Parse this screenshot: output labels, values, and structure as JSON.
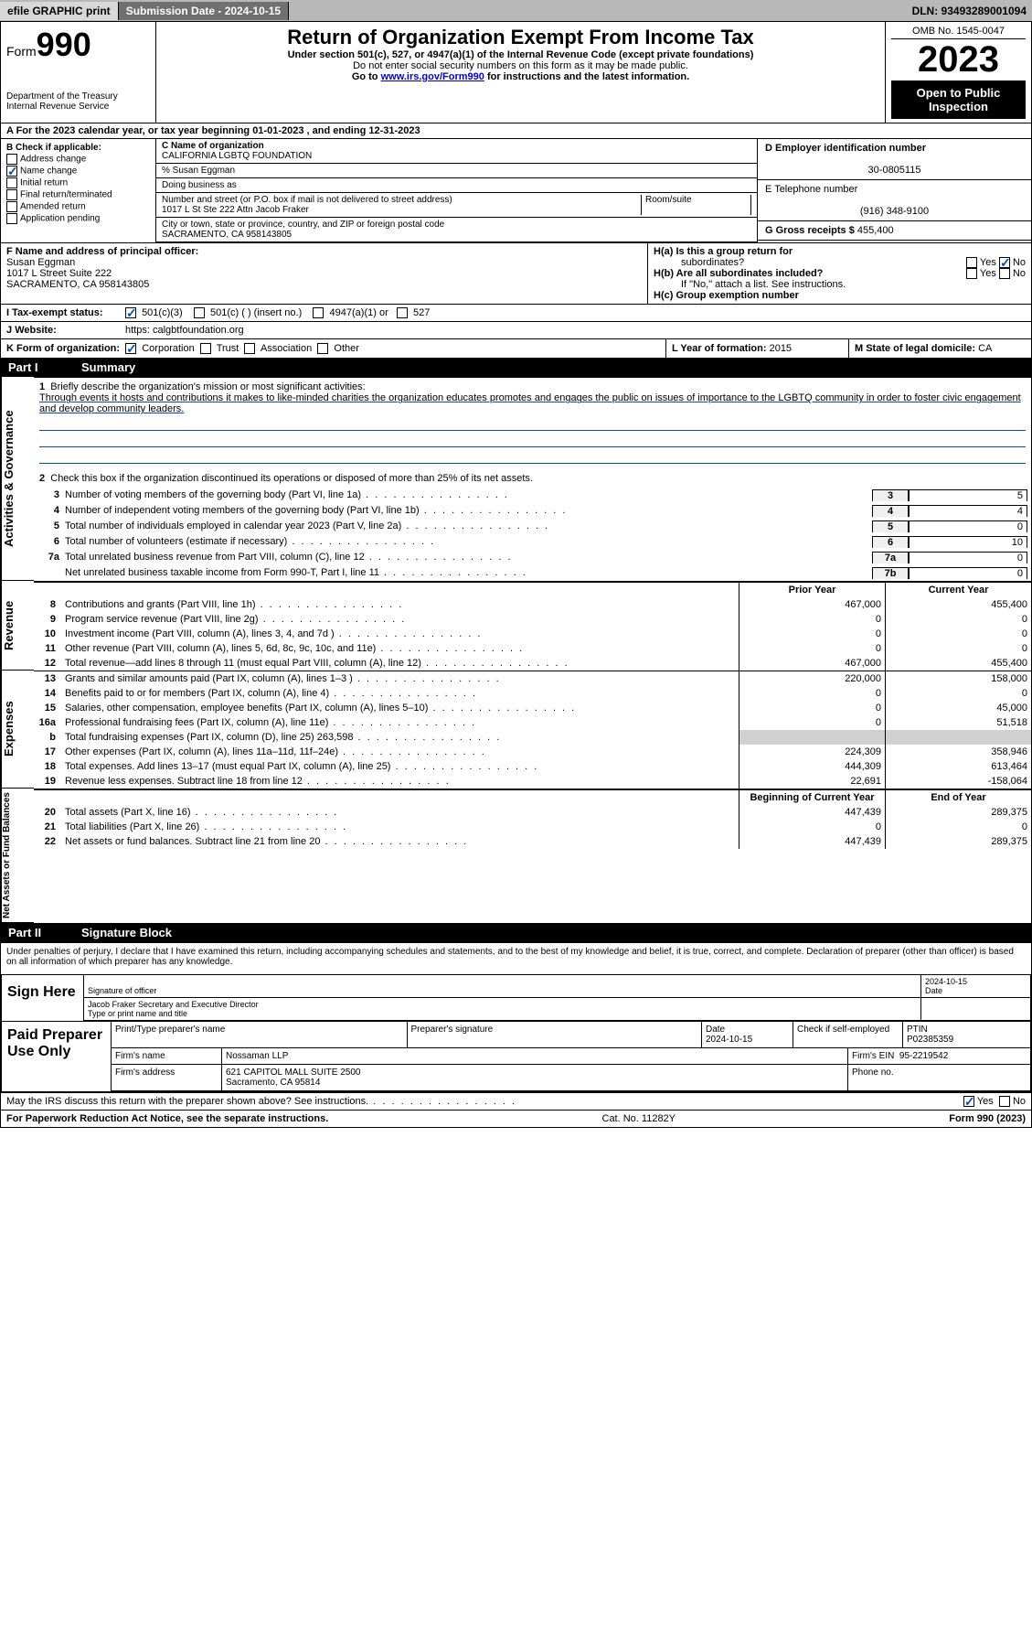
{
  "topbar": {
    "efile": "efile GRAPHIC print",
    "submission": "Submission Date - 2024-10-15",
    "dln": "DLN: 93493289001094"
  },
  "header": {
    "form_word": "Form",
    "form_num": "990",
    "title": "Return of Organization Exempt From Income Tax",
    "subtitle": "Under section 501(c), 527, or 4947(a)(1) of the Internal Revenue Code (except private foundations)",
    "sub2": "Do not enter social security numbers on this form as it may be made public.",
    "sub3_a": "Go to ",
    "sub3_link": "www.irs.gov/Form990",
    "sub3_b": " for instructions and the latest information.",
    "dept": "Department of the Treasury",
    "irs": "Internal Revenue Service",
    "omb": "OMB No. 1545-0047",
    "year": "2023",
    "pubinsp": "Open to Public Inspection"
  },
  "rowA": "A For the 2023 calendar year, or tax year beginning 01-01-2023    , and ending 12-31-2023",
  "B": {
    "label": "B Check if applicable:",
    "opts": [
      "Address change",
      "Name change",
      "Initial return",
      "Final return/terminated",
      "Amended return",
      "Application pending"
    ],
    "checked_idx": 1
  },
  "C": {
    "name_lab": "C Name of organization",
    "name": "CALIFORNIA LGBTQ FOUNDATION",
    "care": "% Susan Eggman",
    "dba_lab": "Doing business as",
    "addr_lab": "Number and street (or P.O. box if mail is not delivered to street address)",
    "room_lab": "Room/suite",
    "addr": "1017 L St Ste 222 Attn Jacob Fraker",
    "city_lab": "City or town, state or province, country, and ZIP or foreign postal code",
    "city": "SACRAMENTO, CA  958143805"
  },
  "D": {
    "ein_lab": "D Employer identification number",
    "ein": "30-0805115",
    "tel_lab": "E Telephone number",
    "tel": "(916) 348-9100",
    "gross_lab": "G Gross receipts $",
    "gross": "455,400"
  },
  "F": {
    "lab": "F  Name and address of principal officer:",
    "name": "Susan Eggman",
    "addr1": "1017 L Street Suite 222",
    "addr2": "SACRAMENTO, CA  958143805"
  },
  "H": {
    "a": "H(a)  Is this a group return for",
    "a2": "subordinates?",
    "b": "H(b)  Are all subordinates included?",
    "b2": "If \"No,\" attach a list. See instructions.",
    "c": "H(c)  Group exemption number  ",
    "yes": "Yes",
    "no": "No"
  },
  "I": {
    "lab": "Tax-exempt status:",
    "opts": [
      "501(c)(3)",
      "501(c) (  ) (insert no.)",
      "4947(a)(1) or",
      "527"
    ]
  },
  "J": {
    "lab": "Website:  ",
    "val": "https: calgbtfoundation.org"
  },
  "K": {
    "lab": "K Form of organization:",
    "opts": [
      "Corporation",
      "Trust",
      "Association",
      "Other"
    ],
    "L_lab": "L Year of formation:",
    "L_val": "2015",
    "M_lab": "M State of legal domicile:",
    "M_val": "CA"
  },
  "part1": {
    "num": "Part I",
    "title": "Summary"
  },
  "mission": {
    "n": "1",
    "lab": "Briefly describe the organization's mission or most significant activities:",
    "text": "Through events it hosts and contributions it makes to like-minded charities the organization educates promotes and engages the public on issues of importance to the LGBTQ community in order to foster civic engagement and develop community leaders."
  },
  "line2": {
    "n": "2",
    "text": "Check this box          if the organization discontinued its operations or disposed of more than 25% of its net assets."
  },
  "gov_rows": [
    {
      "n": "3",
      "t": "Number of voting members of the governing body (Part VI, line 1a)",
      "box": "3",
      "v": "5"
    },
    {
      "n": "4",
      "t": "Number of independent voting members of the governing body (Part VI, line 1b)",
      "box": "4",
      "v": "4"
    },
    {
      "n": "5",
      "t": "Total number of individuals employed in calendar year 2023 (Part V, line 2a)",
      "box": "5",
      "v": "0"
    },
    {
      "n": "6",
      "t": "Total number of volunteers (estimate if necessary)",
      "box": "6",
      "v": "10"
    },
    {
      "n": "7a",
      "t": "Total unrelated business revenue from Part VIII, column (C), line 12",
      "box": "7a",
      "v": "0"
    },
    {
      "n": "",
      "t": "Net unrelated business taxable income from Form 990-T, Part I, line 11",
      "box": "7b",
      "v": "0"
    }
  ],
  "col_hdrs": {
    "prior": "Prior Year",
    "current": "Current Year"
  },
  "rev_rows": [
    {
      "n": "8",
      "t": "Contributions and grants (Part VIII, line 1h)",
      "p": "467,000",
      "c": "455,400"
    },
    {
      "n": "9",
      "t": "Program service revenue (Part VIII, line 2g)",
      "p": "0",
      "c": "0"
    },
    {
      "n": "10",
      "t": "Investment income (Part VIII, column (A), lines 3, 4, and 7d )",
      "p": "0",
      "c": "0"
    },
    {
      "n": "11",
      "t": "Other revenue (Part VIII, column (A), lines 5, 6d, 8c, 9c, 10c, and 11e)",
      "p": "0",
      "c": "0"
    },
    {
      "n": "12",
      "t": "Total revenue—add lines 8 through 11 (must equal Part VIII, column (A), line 12)",
      "p": "467,000",
      "c": "455,400"
    }
  ],
  "exp_rows": [
    {
      "n": "13",
      "t": "Grants and similar amounts paid (Part IX, column (A), lines 1–3 )",
      "p": "220,000",
      "c": "158,000"
    },
    {
      "n": "14",
      "t": "Benefits paid to or for members (Part IX, column (A), line 4)",
      "p": "0",
      "c": "0"
    },
    {
      "n": "15",
      "t": "Salaries, other compensation, employee benefits (Part IX, column (A), lines 5–10)",
      "p": "0",
      "c": "45,000"
    },
    {
      "n": "16a",
      "t": "Professional fundraising fees (Part IX, column (A), line 11e)",
      "p": "0",
      "c": "51,518"
    },
    {
      "n": "b",
      "t": "Total fundraising expenses (Part IX, column (D), line 25) 263,598",
      "p": "",
      "c": "",
      "shade": true
    },
    {
      "n": "17",
      "t": "Other expenses (Part IX, column (A), lines 11a–11d, 11f–24e)",
      "p": "224,309",
      "c": "358,946"
    },
    {
      "n": "18",
      "t": "Total expenses. Add lines 13–17 (must equal Part IX, column (A), line 25)",
      "p": "444,309",
      "c": "613,464"
    },
    {
      "n": "19",
      "t": "Revenue less expenses. Subtract line 18 from line 12",
      "p": "22,691",
      "c": "-158,064"
    }
  ],
  "na_hdrs": {
    "begin": "Beginning of Current Year",
    "end": "End of Year"
  },
  "na_rows": [
    {
      "n": "20",
      "t": "Total assets (Part X, line 16)",
      "p": "447,439",
      "c": "289,375"
    },
    {
      "n": "21",
      "t": "Total liabilities (Part X, line 26)",
      "p": "0",
      "c": "0"
    },
    {
      "n": "22",
      "t": "Net assets or fund balances. Subtract line 21 from line 20",
      "p": "447,439",
      "c": "289,375"
    }
  ],
  "vlabels": {
    "gov": "Activities & Governance",
    "rev": "Revenue",
    "exp": "Expenses",
    "na": "Net Assets or Fund Balances"
  },
  "part2": {
    "num": "Part II",
    "title": "Signature Block"
  },
  "penalties": "Under penalties of perjury, I declare that I have examined this return, including accompanying schedules and statements, and to the best of my knowledge and belief, it is true, correct, and complete. Declaration of preparer (other than officer) is based on all information of which preparer has any knowledge.",
  "sign": {
    "here": "Sign Here",
    "sig_lab": "Signature of officer",
    "date": "2024-10-15",
    "date_lab": "Date",
    "officer": "Jacob Fraker  Secretary and Executive Director",
    "type_lab": "Type or print name and title"
  },
  "prep": {
    "title": "Paid Preparer Use Only",
    "r1": {
      "a": "Print/Type preparer's name",
      "b": "Preparer's signature",
      "c": "Date",
      "c2": "2024-10-15",
      "d": "Check        if self-employed",
      "e": "PTIN",
      "e2": "P02385359"
    },
    "r2": {
      "a": "Firm's name",
      "b": "Nossaman LLP",
      "c": "Firm's EIN",
      "c2": "95-2219542"
    },
    "r3": {
      "a": "Firm's address",
      "b": "621 CAPITOL MALL SUITE 2500",
      "b2": "Sacramento, CA  95814",
      "c": "Phone no."
    }
  },
  "discuss": {
    "q": "May the IRS discuss this return with the preparer shown above? See instructions.",
    "yes": "Yes",
    "no": "No"
  },
  "footer": {
    "l": "For Paperwork Reduction Act Notice, see the separate instructions.",
    "m": "Cat. No. 11282Y",
    "r": "Form 990 (2023)"
  }
}
